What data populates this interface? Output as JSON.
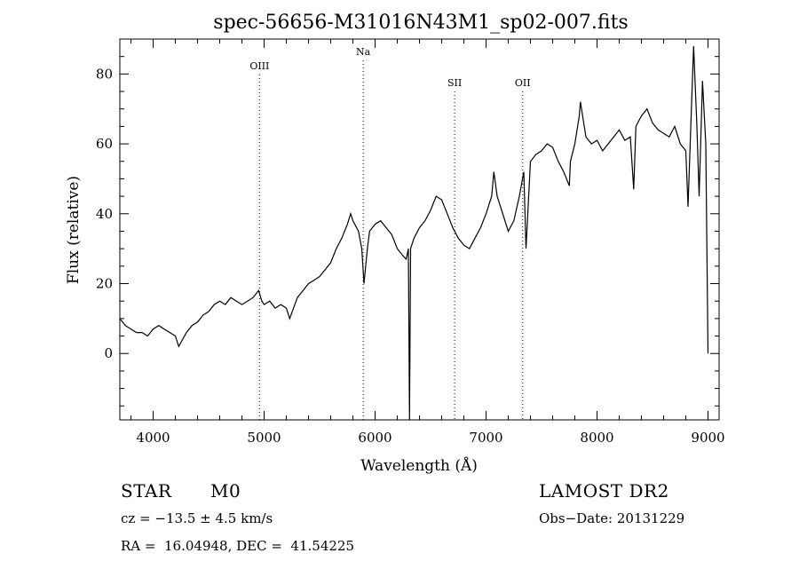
{
  "chart_data": {
    "type": "line",
    "title": "spec-56656-M31016N43M1_sp02-007.fits",
    "xlabel": "Wavelength (Å)",
    "ylabel": "Flux (relative)",
    "xlim": [
      3700,
      9100
    ],
    "ylim": [
      -19,
      90
    ],
    "xticks": [
      4000,
      5000,
      6000,
      7000,
      8000,
      9000
    ],
    "yticks": [
      0,
      20,
      40,
      60,
      80
    ],
    "grid": false,
    "line_color": "#000000",
    "series": [
      {
        "x": [
          3700,
          3750,
          3800,
          3850,
          3900,
          3950,
          4000,
          4050,
          4100,
          4150,
          4200,
          4230,
          4300,
          4350,
          4400,
          4450,
          4500,
          4550,
          4600,
          4650,
          4700,
          4750,
          4800,
          4850,
          4900,
          4950,
          4980,
          5000,
          5050,
          5100,
          5150,
          5200,
          5230,
          5300,
          5350,
          5400,
          5450,
          5500,
          5550,
          5600,
          5650,
          5700,
          5750,
          5780,
          5800,
          5850,
          5880,
          5900,
          5930,
          5950,
          6000,
          6050,
          6100,
          6150,
          6200,
          6250,
          6280,
          6300,
          6310,
          6320,
          6350,
          6400,
          6450,
          6500,
          6550,
          6600,
          6650,
          6700,
          6750,
          6800,
          6850,
          6900,
          6950,
          7000,
          7050,
          7070,
          7100,
          7150,
          7200,
          7250,
          7300,
          7340,
          7360,
          7400,
          7450,
          7500,
          7550,
          7600,
          7650,
          7700,
          7750,
          7760,
          7800,
          7840,
          7850,
          7900,
          7950,
          8000,
          8050,
          8100,
          8150,
          8200,
          8250,
          8300,
          8330,
          8350,
          8400,
          8450,
          8500,
          8550,
          8600,
          8650,
          8700,
          8750,
          8800,
          8820,
          8850,
          8870,
          8900,
          8920,
          8950,
          8980,
          9000
        ],
        "y": [
          10,
          8,
          7,
          6,
          6,
          5,
          7,
          8,
          7,
          6,
          5,
          2,
          6,
          8,
          9,
          11,
          12,
          14,
          15,
          14,
          16,
          15,
          14,
          15,
          16,
          18,
          15,
          14,
          15,
          13,
          14,
          13,
          10,
          16,
          18,
          20,
          21,
          22,
          24,
          26,
          30,
          33,
          37,
          40,
          38,
          35,
          30,
          20,
          30,
          35,
          37,
          38,
          36,
          34,
          30,
          28,
          27,
          30,
          -19,
          30,
          33,
          36,
          38,
          41,
          45,
          44,
          40,
          36,
          33,
          31,
          30,
          33,
          36,
          40,
          45,
          52,
          45,
          40,
          35,
          38,
          45,
          52,
          30,
          55,
          57,
          58,
          60,
          59,
          55,
          52,
          48,
          55,
          60,
          68,
          72,
          62,
          60,
          61,
          58,
          60,
          62,
          64,
          61,
          62,
          47,
          65,
          68,
          70,
          66,
          64,
          63,
          62,
          65,
          60,
          58,
          42,
          70,
          88,
          65,
          45,
          78,
          60,
          0
        ]
      }
    ],
    "annotations": [
      {
        "label": "OIII",
        "x": 4959
      },
      {
        "label": "Na",
        "x": 5893
      },
      {
        "label": "OII",
        "x": 7330
      },
      {
        "label": "SII",
        "x": 6717
      }
    ]
  },
  "info": {
    "object_type": "STAR",
    "subclass": "M0",
    "survey": "LAMOST DR2",
    "velocity": "cz = −13.5 ± 4.5 km/s",
    "obs_date": "Obs−Date: 20131229",
    "coords": "RA =  16.04948, DEC =  41.54225"
  }
}
